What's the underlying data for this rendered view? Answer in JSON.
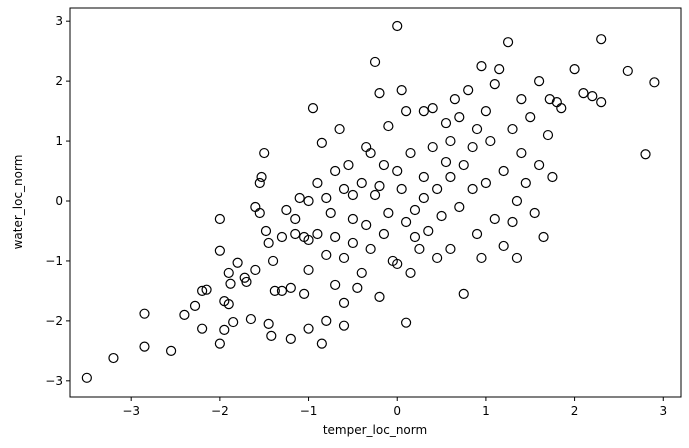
{
  "chart_data": {
    "type": "scatter",
    "xlabel": "temper_loc_norm",
    "ylabel": "water_loc_norm",
    "color": "#000000",
    "x": [
      -3.5,
      -3.2,
      -2.85,
      -2.85,
      -2.55,
      -2.4,
      -2.28,
      -2.2,
      -2.15,
      -2.2,
      -2.0,
      -2.0,
      -2.0,
      -1.95,
      -1.95,
      -1.9,
      -1.9,
      -1.88,
      -1.85,
      -1.8,
      -1.7,
      -1.72,
      -1.65,
      -1.6,
      -1.6,
      -1.55,
      -1.53,
      -1.55,
      -1.5,
      -1.48,
      -1.45,
      -1.45,
      -1.42,
      -1.4,
      -1.38,
      -1.3,
      -1.25,
      -1.2,
      -1.2,
      -1.15,
      -1.15,
      -1.1,
      -1.05,
      -1.05,
      -1.0,
      -1.0,
      -1.0,
      -1.0,
      -0.95,
      -0.9,
      -0.85,
      -0.85,
      -0.8,
      -0.8,
      -0.8,
      -0.75,
      -0.7,
      -0.7,
      -0.7,
      -0.65,
      -0.6,
      -0.6,
      -0.6,
      -0.55,
      -0.5,
      -0.5,
      -0.5,
      -0.45,
      -0.4,
      -0.4,
      -0.35,
      -0.3,
      -0.3,
      -0.25,
      -0.25,
      -0.2,
      -0.2,
      -0.15,
      -0.1,
      -0.1,
      -0.05,
      0.0,
      0.0,
      0.0,
      0.05,
      0.05,
      0.1,
      0.1,
      0.1,
      0.15,
      0.2,
      0.25,
      0.3,
      0.3,
      0.35,
      0.4,
      0.4,
      0.45,
      0.5,
      0.55,
      0.6,
      0.6,
      0.65,
      0.7,
      0.75,
      0.75,
      0.8,
      0.85,
      0.9,
      0.9,
      0.95,
      0.95,
      1.0,
      1.05,
      1.1,
      1.1,
      1.15,
      1.2,
      1.25,
      1.3,
      1.3,
      1.35,
      1.4,
      1.4,
      1.45,
      1.5,
      1.55,
      1.6,
      1.6,
      1.65,
      1.7,
      1.72,
      1.75,
      1.8,
      1.85,
      2.0,
      2.1,
      2.2,
      2.3,
      2.3,
      2.6,
      2.8,
      2.9,
      1.2,
      1.35,
      -0.9,
      -0.35,
      0.2,
      0.6,
      0.85,
      -0.15,
      0.45,
      -0.6,
      0.3,
      1.0,
      0.7,
      -0.2,
      0.15,
      -1.3,
      0.55
    ],
    "values": [
      -2.95,
      -2.62,
      -1.88,
      -2.43,
      -2.5,
      -1.9,
      -1.75,
      -1.5,
      -1.48,
      -2.13,
      -2.38,
      -0.83,
      -0.3,
      -1.67,
      -2.15,
      -1.2,
      -1.72,
      -1.38,
      -2.02,
      -1.03,
      -1.35,
      -1.28,
      -1.97,
      -1.15,
      -0.1,
      0.3,
      0.4,
      -0.2,
      0.8,
      -0.5,
      -0.7,
      -2.05,
      -2.25,
      -1.0,
      -1.5,
      -1.5,
      -0.15,
      -1.45,
      -2.3,
      -0.55,
      -0.3,
      0.05,
      -0.6,
      -1.55,
      0.0,
      -0.65,
      -1.15,
      -2.13,
      1.55,
      -0.55,
      -2.38,
      0.97,
      -0.9,
      -2.0,
      0.05,
      -0.2,
      -0.6,
      0.5,
      -1.4,
      1.2,
      -0.95,
      -1.7,
      -2.08,
      0.6,
      0.1,
      -0.3,
      -0.7,
      -1.45,
      0.3,
      -1.2,
      -0.4,
      0.8,
      -0.8,
      2.32,
      0.1,
      -1.6,
      1.8,
      0.6,
      1.25,
      -0.2,
      -1.0,
      2.92,
      0.5,
      -1.05,
      1.85,
      0.2,
      -0.35,
      -2.03,
      1.5,
      0.8,
      -0.15,
      -0.8,
      0.4,
      1.5,
      -0.5,
      1.55,
      0.9,
      0.2,
      -0.25,
      1.3,
      -0.8,
      0.4,
      1.7,
      -0.1,
      -1.55,
      0.6,
      1.85,
      0.2,
      -0.55,
      1.2,
      2.25,
      -0.95,
      0.3,
      1.0,
      1.95,
      -0.3,
      2.2,
      0.5,
      2.65,
      1.2,
      -0.35,
      0.0,
      1.7,
      0.8,
      0.3,
      1.4,
      -0.2,
      2.0,
      0.6,
      -0.6,
      1.1,
      1.7,
      0.4,
      1.65,
      1.55,
      2.2,
      1.8,
      1.75,
      2.7,
      1.65,
      2.17,
      0.78,
      1.98,
      -0.75,
      -0.95,
      0.3,
      0.9,
      -0.6,
      1.0,
      0.9,
      -0.55,
      -0.95,
      0.2,
      0.05,
      1.5,
      1.4,
      0.25,
      -1.2,
      -0.6,
      0.65
    ],
    "xlim": [
      -3.69,
      3.2
    ],
    "ylim": [
      -3.27,
      3.22
    ],
    "xticks": [
      {
        "value": -3,
        "label": "−3"
      },
      {
        "value": -2,
        "label": "−2"
      },
      {
        "value": -1,
        "label": "−1"
      },
      0,
      1,
      2,
      3
    ],
    "yticks": [
      {
        "value": -3,
        "label": "−3"
      },
      {
        "value": -2,
        "label": "−2"
      },
      {
        "value": -1,
        "label": "−1"
      },
      0,
      1,
      2,
      3
    ]
  }
}
